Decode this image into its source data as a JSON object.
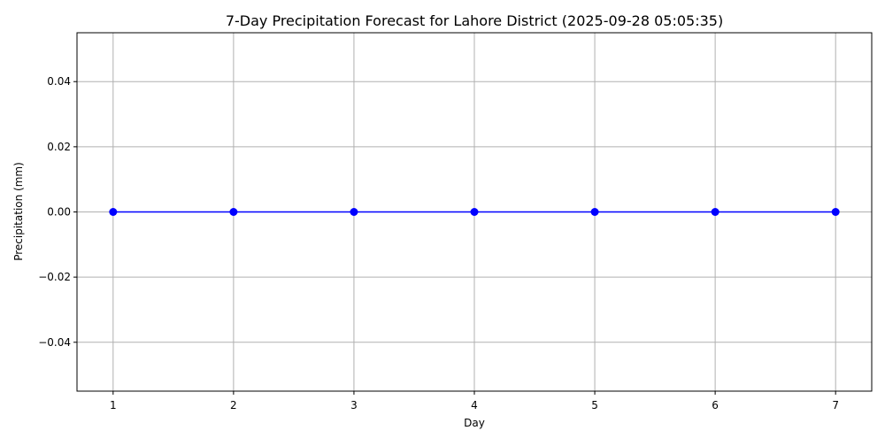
{
  "chart_data": {
    "type": "line",
    "title": "7-Day Precipitation Forecast for Lahore District (2025-09-28 05:05:35)",
    "xlabel": "Day",
    "ylabel": "Precipitation (mm)",
    "x": [
      1,
      2,
      3,
      4,
      5,
      6,
      7
    ],
    "series": [
      {
        "values": [
          0,
          0,
          0,
          0,
          0,
          0,
          0
        ],
        "color": "#0000ff",
        "marker": "circle"
      }
    ],
    "xticks": [
      "1",
      "2",
      "3",
      "4",
      "5",
      "6",
      "7"
    ],
    "yticks": [
      {
        "value": 0.04,
        "label": "0.04"
      },
      {
        "value": 0.02,
        "label": "0.02"
      },
      {
        "value": 0.0,
        "label": "0.00"
      },
      {
        "value": -0.02,
        "label": "−0.02"
      },
      {
        "value": -0.04,
        "label": "−0.04"
      }
    ],
    "xlim": [
      0.7,
      7.3
    ],
    "ylim": [
      -0.055,
      0.055
    ],
    "grid": true,
    "legend": "none"
  }
}
